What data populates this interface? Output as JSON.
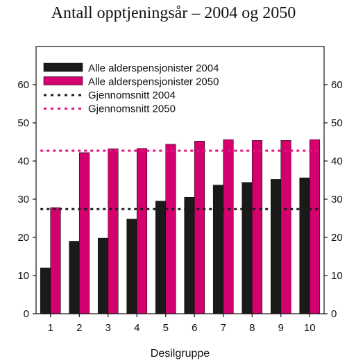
{
  "chart_data": {
    "type": "bar",
    "title": "Antall opptjeningsår – 2004 og 2050",
    "xlabel": "Desilgruppe",
    "ylabel": "",
    "categories": [
      "1",
      "2",
      "3",
      "4",
      "5",
      "6",
      "7",
      "8",
      "9",
      "10"
    ],
    "series": [
      {
        "name": "Alle alderspensjonister 2004",
        "color": "#1a1a1a",
        "values": [
          12,
          19,
          19.8,
          24.8,
          29.5,
          30.5,
          33.7,
          34.4,
          35.2,
          35.6
        ]
      },
      {
        "name": "Alle alderspensjonister 2050",
        "color": "#d4006e",
        "values": [
          27.8,
          42.2,
          43.2,
          43.3,
          44.4,
          45.2,
          45.6,
          45.4,
          45.4,
          45.6
        ]
      }
    ],
    "averages": [
      {
        "name": "Gjennomsnitt 2004",
        "color": "#1a1a1a",
        "value": 27.4
      },
      {
        "name": "Gjennomsnitt 2050",
        "color": "#e0157f",
        "value": 42.7
      }
    ],
    "ylim": [
      0,
      70
    ],
    "yticks": [
      0,
      10,
      20,
      30,
      40,
      50,
      60
    ],
    "grid": false,
    "legend_position": "top-left",
    "y_axis_both_sides": true
  }
}
